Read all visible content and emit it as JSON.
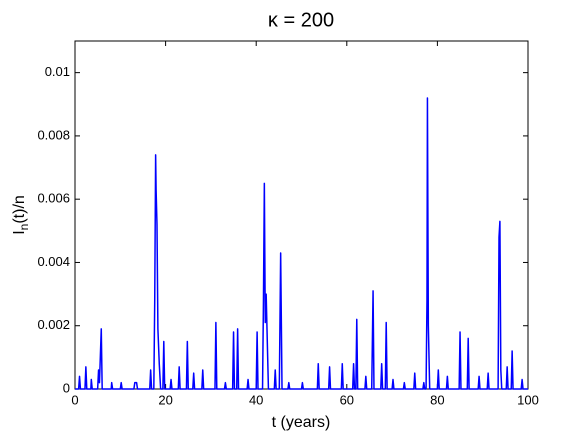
{
  "chart_data": {
    "type": "line",
    "title": "κ = 200",
    "xlabel": "t (years)",
    "ylabel": {
      "main": "I",
      "sub": "n",
      "rest": "(t)/n"
    },
    "xlim": [
      0,
      100
    ],
    "xticks": [
      0,
      20,
      40,
      60,
      80,
      100
    ],
    "ylim": [
      0,
      0.011
    ],
    "yticks": [
      0,
      0.002,
      0.004,
      0.006,
      0.008,
      0.01
    ],
    "grid": false,
    "series": [
      {
        "color": "#0000ff",
        "x": [
          0,
          0.8,
          1,
          1.2,
          2.2,
          2.4,
          2.6,
          3.5,
          3.6,
          3.8,
          5,
          5.2,
          5.4,
          5.8,
          6,
          8,
          8.1,
          8.3,
          10,
          10.2,
          10.4,
          13,
          13.2,
          13.6,
          13.8,
          16.5,
          16.7,
          16.9,
          17.4,
          17.6,
          17.8,
          17.9,
          18.1,
          18.3,
          18.6,
          18.9,
          19.4,
          19.6,
          19.8,
          21,
          21.2,
          21.4,
          22.8,
          23,
          23.2,
          24.6,
          24.8,
          25,
          26,
          26.2,
          26.4,
          28,
          28.2,
          28.4,
          30.9,
          31.1,
          31.3,
          33,
          33.2,
          33.4,
          34.8,
          35,
          35.2,
          35.7,
          35.9,
          36.1,
          38,
          38.2,
          38.4,
          40,
          40.2,
          40.4,
          41.4,
          41.6,
          41.8,
          42,
          42.2,
          42.4,
          42.7,
          44,
          44.2,
          44.4,
          45.1,
          45.4,
          45.7,
          47,
          47.2,
          47.4,
          50,
          50.2,
          50.4,
          53.5,
          53.7,
          53.9,
          56,
          56.2,
          56.4,
          58.8,
          59,
          59.2,
          61.3,
          61.5,
          61.7,
          62,
          62.2,
          62.4,
          64,
          64.2,
          64.4,
          65.5,
          65.8,
          66,
          67.5,
          67.7,
          67.9,
          68.5,
          68.7,
          68.9,
          70,
          70.2,
          70.4,
          72.5,
          72.7,
          72.9,
          74.8,
          75,
          75.2,
          76.8,
          77,
          77.2,
          77.5,
          77.7,
          77.8,
          78,
          78.3,
          80,
          80.2,
          80.4,
          82,
          82.2,
          82.4,
          84.8,
          85,
          85.2,
          86.6,
          86.8,
          87,
          89,
          89.2,
          89.4,
          91,
          91.2,
          91.4,
          93.4,
          93.6,
          93.8,
          94,
          94.2,
          95.2,
          95.4,
          95.6,
          96.3,
          96.5,
          96.7,
          98.5,
          98.7,
          98.9,
          100
        ],
        "values": [
          0,
          0,
          0.0004,
          0,
          0,
          0.0007,
          0,
          0,
          0.0003,
          0,
          0,
          0.0006,
          0.0002,
          0.0019,
          0,
          0,
          0.0002,
          0,
          0,
          0.0002,
          0,
          0,
          0.0002,
          0.0002,
          0,
          0,
          0.0006,
          0,
          0,
          0.0028,
          0.0074,
          0.0063,
          0.0052,
          0.0019,
          0.0008,
          0,
          0,
          0.0015,
          0,
          0,
          0.0003,
          0,
          0,
          0.0007,
          0,
          0,
          0.0015,
          0,
          0,
          0.0005,
          0,
          0,
          0.0006,
          0,
          0,
          0.0021,
          0,
          0,
          0.0002,
          0,
          0,
          0.0018,
          0,
          0,
          0.0019,
          0,
          0,
          0.0003,
          0,
          0,
          0.0018,
          0,
          0,
          0.0028,
          0.0065,
          0.0021,
          0.003,
          0.0018,
          0,
          0,
          0.0006,
          0,
          0,
          0.0043,
          0,
          0,
          0.0002,
          0,
          0,
          0.0002,
          0,
          0,
          0.0008,
          0,
          0,
          0.0007,
          0,
          0,
          0.0008,
          0,
          0,
          0.0008,
          0,
          0,
          0.0022,
          0,
          0,
          0.0004,
          0,
          0,
          0.0031,
          0,
          0,
          0.0008,
          0,
          0,
          0.0021,
          0,
          0,
          0.0003,
          0,
          0,
          0.0002,
          0,
          0,
          0.0005,
          0,
          0,
          0.0002,
          0,
          0,
          0.0028,
          0.0092,
          0.002,
          0,
          0,
          0.0006,
          0,
          0,
          0.0004,
          0,
          0,
          0.0018,
          0,
          0,
          0.0016,
          0,
          0,
          0.0004,
          0,
          0,
          0.0005,
          0,
          0,
          0.0048,
          0.0053,
          0.0006,
          0,
          0,
          0.0007,
          0,
          0,
          0.0012,
          0,
          0,
          0.0003,
          0,
          0
        ]
      }
    ]
  }
}
